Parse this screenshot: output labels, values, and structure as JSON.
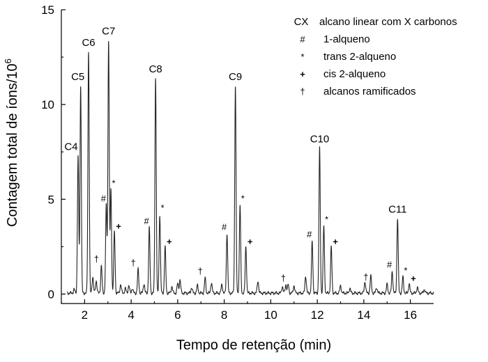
{
  "chart_data": {
    "type": "line",
    "xlabel": "Tempo de retenção (min)",
    "ylabel_main": "Contagem total de íons/10",
    "ylabel_exp": "6",
    "xlim": [
      1.0,
      17.0
    ],
    "ylim": [
      -0.5,
      15
    ],
    "x_ticks": [
      2,
      4,
      6,
      8,
      10,
      12,
      14,
      16
    ],
    "y_ticks": [
      0,
      5,
      10,
      15
    ],
    "baseline": 0.05,
    "noise": [
      {
        "x": 1.55,
        "y": 0.25
      },
      {
        "x": 2.35,
        "y": 0.9
      },
      {
        "x": 2.5,
        "y": 0.7
      },
      {
        "x": 3.55,
        "y": 0.5
      },
      {
        "x": 3.75,
        "y": 0.3
      },
      {
        "x": 3.9,
        "y": 0.45
      },
      {
        "x": 4.05,
        "y": 0.3
      },
      {
        "x": 4.55,
        "y": 0.55
      },
      {
        "x": 5.75,
        "y": 0.4
      },
      {
        "x": 6.0,
        "y": 0.55
      },
      {
        "x": 6.1,
        "y": 0.75
      },
      {
        "x": 6.6,
        "y": 0.35
      },
      {
        "x": 6.85,
        "y": 0.45
      },
      {
        "x": 7.45,
        "y": 0.6
      },
      {
        "x": 7.9,
        "y": 0.5
      },
      {
        "x": 9.45,
        "y": 0.7
      },
      {
        "x": 10.5,
        "y": 0.4
      },
      {
        "x": 10.65,
        "y": 0.5
      },
      {
        "x": 11.0,
        "y": 0.45
      },
      {
        "x": 11.5,
        "y": 0.95
      },
      {
        "x": 13.0,
        "y": 0.45
      },
      {
        "x": 13.4,
        "y": 0.3
      },
      {
        "x": 14.05,
        "y": 0.65
      },
      {
        "x": 14.3,
        "y": 0.45
      },
      {
        "x": 14.55,
        "y": 0.35
      },
      {
        "x": 15.0,
        "y": 0.5
      },
      {
        "x": 16.3,
        "y": 0.35
      },
      {
        "x": 16.6,
        "y": 0.25
      }
    ],
    "peaks": [
      {
        "x": 1.72,
        "y": 7.3,
        "label": "C4"
      },
      {
        "x": 1.83,
        "y": 11.0,
        "label": "C5"
      },
      {
        "x": 2.17,
        "y": 12.8,
        "label": "C6"
      },
      {
        "x": 2.72,
        "y": 1.5,
        "label": "†"
      },
      {
        "x": 2.93,
        "y": 4.7,
        "label": "#"
      },
      {
        "x": 3.03,
        "y": 13.4,
        "label": "C7"
      },
      {
        "x": 3.13,
        "y": 5.5,
        "label": "*"
      },
      {
        "x": 3.28,
        "y": 3.3,
        "label": "+"
      },
      {
        "x": 4.3,
        "y": 1.3,
        "label": "†"
      },
      {
        "x": 4.78,
        "y": 3.5,
        "label": "#"
      },
      {
        "x": 5.05,
        "y": 11.4,
        "label": "C8"
      },
      {
        "x": 5.23,
        "y": 4.2,
        "label": "*"
      },
      {
        "x": 5.46,
        "y": 2.5,
        "label": "+"
      },
      {
        "x": 7.18,
        "y": 0.85,
        "label": "†"
      },
      {
        "x": 8.12,
        "y": 3.2,
        "label": "#"
      },
      {
        "x": 8.48,
        "y": 11.0,
        "label": "C9"
      },
      {
        "x": 8.68,
        "y": 4.7,
        "label": "*"
      },
      {
        "x": 8.93,
        "y": 2.5,
        "label": "+"
      },
      {
        "x": 10.75,
        "y": 0.5,
        "label": "†"
      },
      {
        "x": 11.78,
        "y": 2.8,
        "label": "#"
      },
      {
        "x": 12.1,
        "y": 7.7,
        "label": "C10"
      },
      {
        "x": 12.28,
        "y": 3.6,
        "label": "*"
      },
      {
        "x": 12.6,
        "y": 2.5,
        "label": "+"
      },
      {
        "x": 14.3,
        "y": 0.55,
        "label": "†"
      },
      {
        "x": 15.22,
        "y": 1.2,
        "label": "#"
      },
      {
        "x": 15.45,
        "y": 4.0,
        "label": "C11"
      },
      {
        "x": 15.68,
        "y": 0.9,
        "label": "*"
      },
      {
        "x": 15.95,
        "y": 0.55,
        "label": "+"
      }
    ],
    "legend": [
      {
        "symbol": "CX",
        "text": "alcano linear com X carbonos"
      },
      {
        "symbol": "#",
        "text": "1-alqueno"
      },
      {
        "symbol": "*",
        "text": "trans 2-alqueno"
      },
      {
        "symbol": "+",
        "text": "cis 2-alqueno"
      },
      {
        "symbol": "†",
        "text": "alcanos ramificados"
      }
    ],
    "legend_position": "top-right"
  }
}
